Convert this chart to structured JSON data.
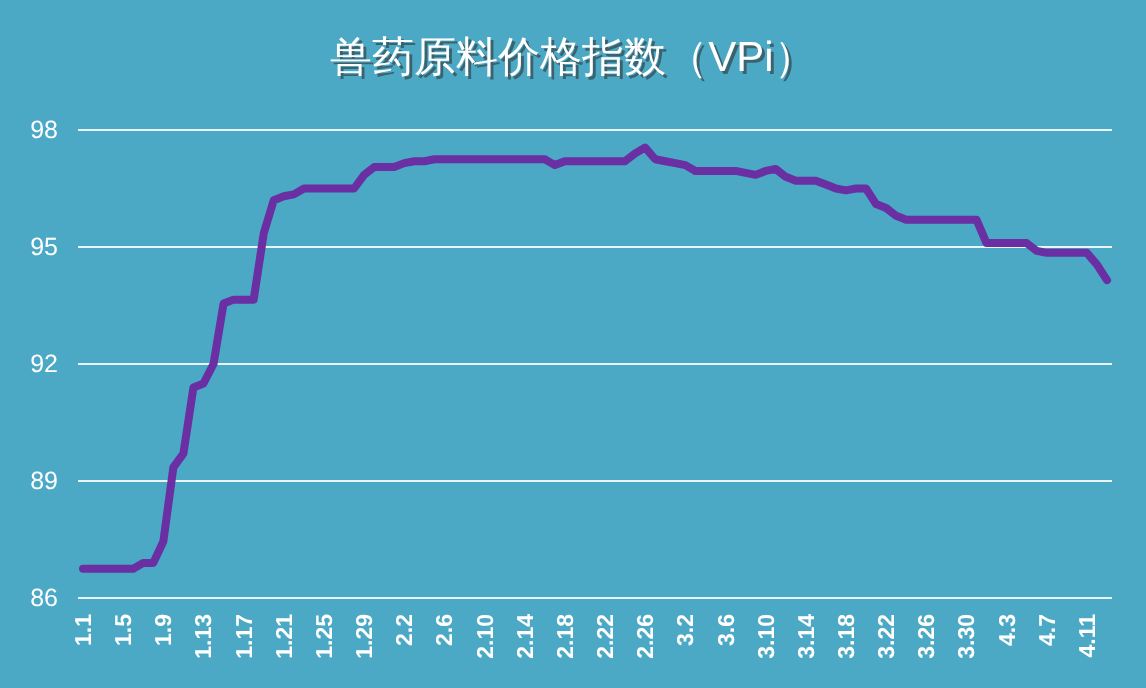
{
  "chart_data": {
    "type": "line",
    "title": "兽药原料价格指数（VPi）",
    "categories": [
      "1.1",
      null,
      null,
      null,
      "1.5",
      null,
      null,
      null,
      "1.9",
      null,
      null,
      null,
      "1.13",
      null,
      null,
      null,
      "1.17",
      null,
      null,
      null,
      "1.21",
      null,
      null,
      null,
      "1.25",
      null,
      null,
      null,
      "1.29",
      null,
      null,
      null,
      "2.2",
      null,
      null,
      null,
      "2.6",
      null,
      null,
      null,
      "2.10",
      null,
      null,
      null,
      "2.14",
      null,
      null,
      null,
      "2.18",
      null,
      null,
      null,
      "2.22",
      null,
      null,
      null,
      "2.26",
      null,
      null,
      null,
      "3.2",
      null,
      null,
      null,
      "3.6",
      null,
      null,
      null,
      "3.10",
      null,
      null,
      null,
      "3.14",
      null,
      null,
      null,
      "3.18",
      null,
      null,
      null,
      "3.22",
      null,
      null,
      null,
      "3.26",
      null,
      null,
      null,
      "3.30",
      null,
      null,
      null,
      "4.3",
      null,
      null,
      null,
      "4.7",
      null,
      null,
      null,
      "4.11",
      null,
      null
    ],
    "series": [
      {
        "color": "#6a2fa3",
        "values": [
          86.75,
          86.75,
          86.75,
          86.75,
          86.75,
          86.75,
          86.9,
          86.9,
          87.45,
          89.35,
          89.7,
          91.4,
          91.5,
          92.0,
          93.55,
          93.65,
          93.65,
          93.65,
          95.35,
          96.2,
          96.3,
          96.35,
          96.5,
          96.5,
          96.5,
          96.5,
          96.5,
          96.5,
          96.85,
          97.05,
          97.05,
          97.05,
          97.15,
          97.2,
          97.2,
          97.25,
          97.25,
          97.25,
          97.25,
          97.25,
          97.25,
          97.25,
          97.25,
          97.25,
          97.25,
          97.25,
          97.25,
          97.1,
          97.2,
          97.2,
          97.2,
          97.2,
          97.2,
          97.2,
          97.2,
          97.4,
          97.55,
          97.25,
          97.2,
          97.15,
          97.1,
          96.95,
          96.95,
          96.95,
          96.95,
          96.95,
          96.9,
          96.85,
          96.95,
          97.0,
          96.8,
          96.7,
          96.7,
          96.7,
          96.6,
          96.5,
          96.45,
          96.5,
          96.5,
          96.1,
          96.0,
          95.8,
          95.7,
          95.7,
          95.7,
          95.7,
          95.7,
          95.7,
          95.7,
          95.7,
          95.1,
          95.1,
          95.1,
          95.1,
          95.1,
          94.9,
          94.85,
          94.85,
          94.85,
          94.85,
          94.85,
          94.55,
          94.15
        ]
      }
    ],
    "ylim": [
      86,
      98
    ],
    "yticks": [
      86,
      89,
      92,
      95,
      98
    ],
    "grid": "y",
    "marker": "none",
    "line_style": "solid"
  }
}
